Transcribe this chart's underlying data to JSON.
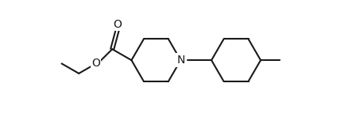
{
  "background_color": "#ffffff",
  "line_color": "#1a1a1a",
  "line_width": 1.5,
  "font_size": 10,
  "figsize": [
    4.53,
    1.48
  ],
  "dpi": 100,
  "N_label": "N",
  "O_label1": "O",
  "O_label2": "O",
  "xlim": [
    0,
    10.5
  ],
  "ylim": [
    -1.5,
    1.6
  ]
}
